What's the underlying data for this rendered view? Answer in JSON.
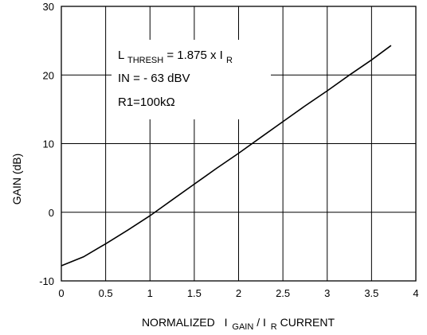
{
  "chart_data": {
    "type": "line",
    "xlim": [
      0,
      4
    ],
    "ylim": [
      -10,
      30
    ],
    "xticks": [
      "0",
      "0.5",
      "1",
      "1.5",
      "2",
      "2.5",
      "3",
      "3.5",
      "4"
    ],
    "xtick_values": [
      0,
      0.5,
      1,
      1.5,
      2,
      2.5,
      3,
      3.5,
      4
    ],
    "yticks": [
      "-10",
      "0",
      "10",
      "20",
      "30"
    ],
    "ytick_values": [
      -10,
      0,
      10,
      20,
      30
    ],
    "ylabel": "GAIN (dB)",
    "xlabel": {
      "prefix": "NORMALIZED",
      "i1": "I",
      "sub1": "GAIN",
      "slash": "/",
      "i2": "I",
      "sub2": "R",
      "suffix": "CURRENT"
    },
    "grid": true,
    "series": [
      {
        "x": [
          0,
          0.25,
          0.5,
          0.75,
          1.0,
          1.25,
          1.5,
          1.75,
          2.0,
          2.25,
          2.5,
          2.75,
          3.0,
          3.25,
          3.5,
          3.72
        ],
        "y": [
          -7.8,
          -6.5,
          -4.6,
          -2.6,
          -0.5,
          1.8,
          4.1,
          6.4,
          8.6,
          10.9,
          13.2,
          15.5,
          17.7,
          20.0,
          22.2,
          24.3
        ]
      }
    ],
    "annotations": {
      "line1": {
        "main": "L",
        "sub": "THRESH",
        "rest": " = 1.875 x I",
        "sub2": "R"
      },
      "line2": "IN = - 63 dBV",
      "line3": "R1=100kΩ"
    }
  }
}
